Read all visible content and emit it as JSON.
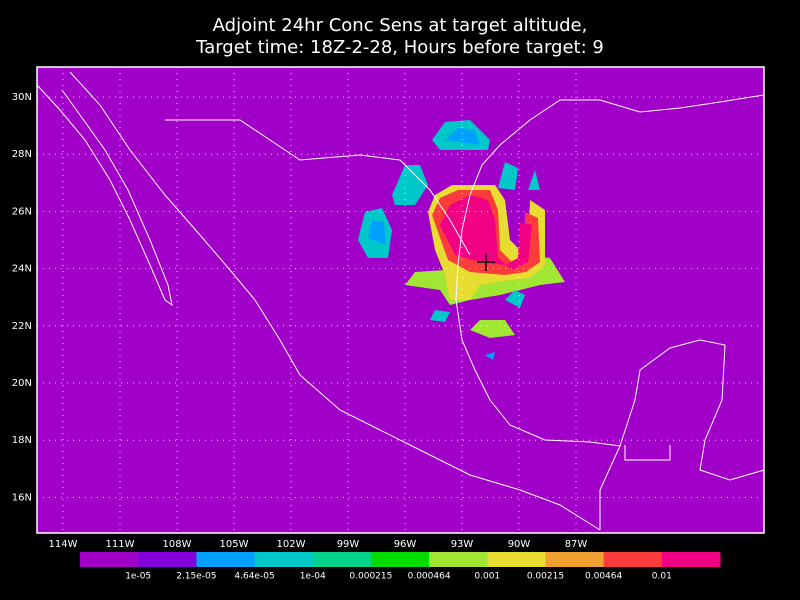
{
  "title": [
    "Adjoint 24hr Conc Sens at target altitude,",
    "Target time: 18Z-2-28, Hours before target: 9"
  ],
  "lon_labels": [
    "114W",
    "111W",
    "108W",
    "105W",
    "102W",
    "99W",
    "96W",
    "93W",
    "90W",
    "87W"
  ],
  "lat_labels": [
    "30N",
    "28N",
    "26N",
    "24N",
    "22N",
    "20N",
    "18N",
    "16N"
  ],
  "colorbar": {
    "colors": [
      "#a000c8",
      "#8200dc",
      "#00a0ff",
      "#00c8c8",
      "#00d28c",
      "#00dc00",
      "#a0e632",
      "#e6dc32",
      "#f0a030",
      "#fa3c3c",
      "#f00082"
    ],
    "labels": [
      "1e-05",
      "2.15e-05",
      "4.64e-05",
      "1e-04",
      "0.000215",
      "0.000464",
      "0.001",
      "0.00215",
      "0.00464",
      "0.01"
    ]
  }
}
